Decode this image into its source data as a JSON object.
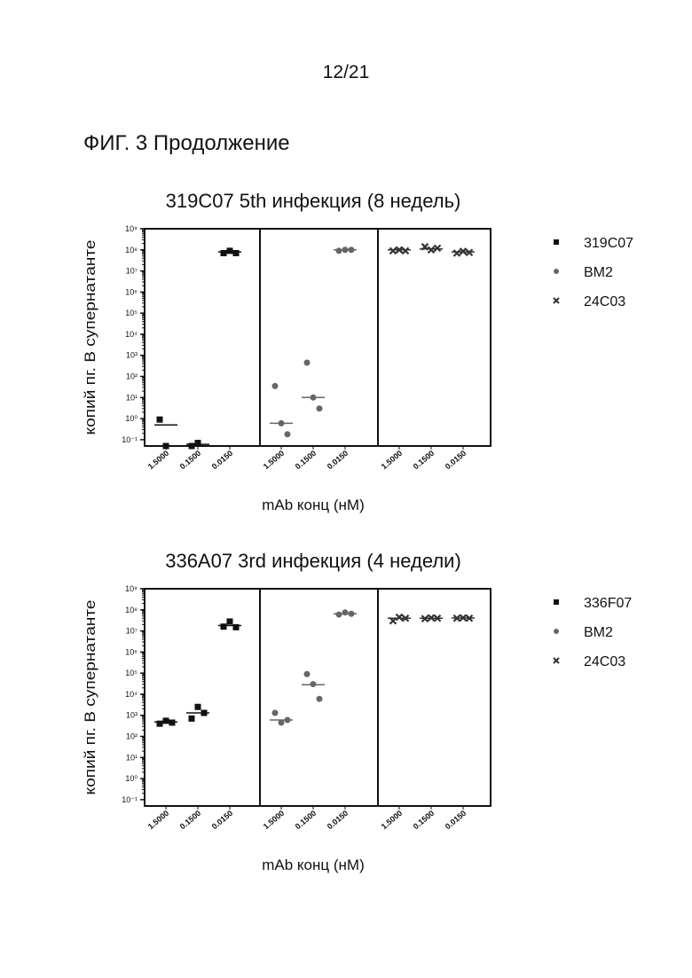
{
  "page": {
    "page_number": "12/21",
    "figure_caption": "ФИГ. 3 Продолжение"
  },
  "chart_data": [
    {
      "type": "scatter",
      "title": "319C07 5th инфекция (8 недель)",
      "xlabel": "mAb конц (нМ)",
      "ylabel": "копий пг. В супернатанте",
      "yscale": "log",
      "ylim": [
        0.05,
        1000000000
      ],
      "ytick_labels": [
        "10⁹",
        "10⁸",
        "10⁷",
        "10⁶",
        "10⁵",
        "10⁴",
        "10³",
        "10²",
        "10¹",
        "10⁰",
        "10⁻¹"
      ],
      "panels": 3,
      "categories": [
        "1.5000",
        "0.1500",
        "0.0150"
      ],
      "legend": {
        "position": "right"
      },
      "series": [
        {
          "name": "319C07",
          "marker": "square",
          "color": "#111111",
          "panel": 0,
          "points": [
            [
              [
                0.9,
                0.05
              ],
              0.5
            ],
            [
              [
                0.05,
                0.07
              ],
              0.06
            ],
            [
              [
                70000000,
                90000000,
                70000000
              ],
              80000000
            ]
          ]
        },
        {
          "name": "BM2",
          "marker": "circle",
          "color": "#666666",
          "panel": 1,
          "points": [
            [
              [
                35,
                0.6,
                0.18
              ],
              0.6
            ],
            [
              [
                450,
                10,
                3
              ],
              10
            ],
            [
              [
                90000000,
                100000000,
                100000000
              ],
              100000000
            ]
          ]
        },
        {
          "name": "24C03",
          "marker": "x",
          "color": "#333333",
          "panel": 2,
          "points": [
            [
              [
                90000000,
                100000000,
                90000000
              ],
              100000000
            ],
            [
              [
                140000000,
                100000000,
                120000000
              ],
              110000000
            ],
            [
              [
                70000000,
                85000000,
                75000000
              ],
              80000000
            ]
          ]
        }
      ]
    },
    {
      "type": "scatter",
      "title": "336A07 3rd инфекция (4 недели)",
      "xlabel": "mAb конц (нМ)",
      "ylabel": "копий пг. В супернатанте",
      "yscale": "log",
      "ylim": [
        0.05,
        1000000000
      ],
      "ytick_labels": [
        "10⁹",
        "10⁸",
        "10⁷",
        "10⁶",
        "10⁵",
        "10⁴",
        "10³",
        "10²",
        "10¹",
        "10⁰",
        "10⁻¹"
      ],
      "panels": 3,
      "categories": [
        "1.5000",
        "0.1500",
        "0.0150"
      ],
      "legend": {
        "position": "right"
      },
      "series": [
        {
          "name": "336F07",
          "marker": "square",
          "color": "#111111",
          "panel": 0,
          "points": [
            [
              [
                400,
                550,
                450
              ],
              480
            ],
            [
              [
                700,
                2500,
                1300
              ],
              1300
            ],
            [
              [
                16000000,
                28000000,
                15000000
              ],
              18000000
            ]
          ]
        },
        {
          "name": "BM2",
          "marker": "circle",
          "color": "#666666",
          "panel": 1,
          "points": [
            [
              [
                1300,
                450,
                600
              ],
              600
            ],
            [
              [
                90000,
                30000,
                6000
              ],
              28000
            ],
            [
              [
                60000000,
                75000000,
                65000000
              ],
              65000000
            ]
          ]
        },
        {
          "name": "24C03",
          "marker": "x",
          "color": "#333333",
          "panel": 2,
          "points": [
            [
              [
                30000000,
                45000000,
                40000000
              ],
              40000000
            ],
            [
              [
                38000000,
                42000000,
                40000000
              ],
              40000000
            ],
            [
              [
                40000000,
                42000000,
                40000000
              ],
              41000000
            ]
          ]
        }
      ]
    }
  ]
}
